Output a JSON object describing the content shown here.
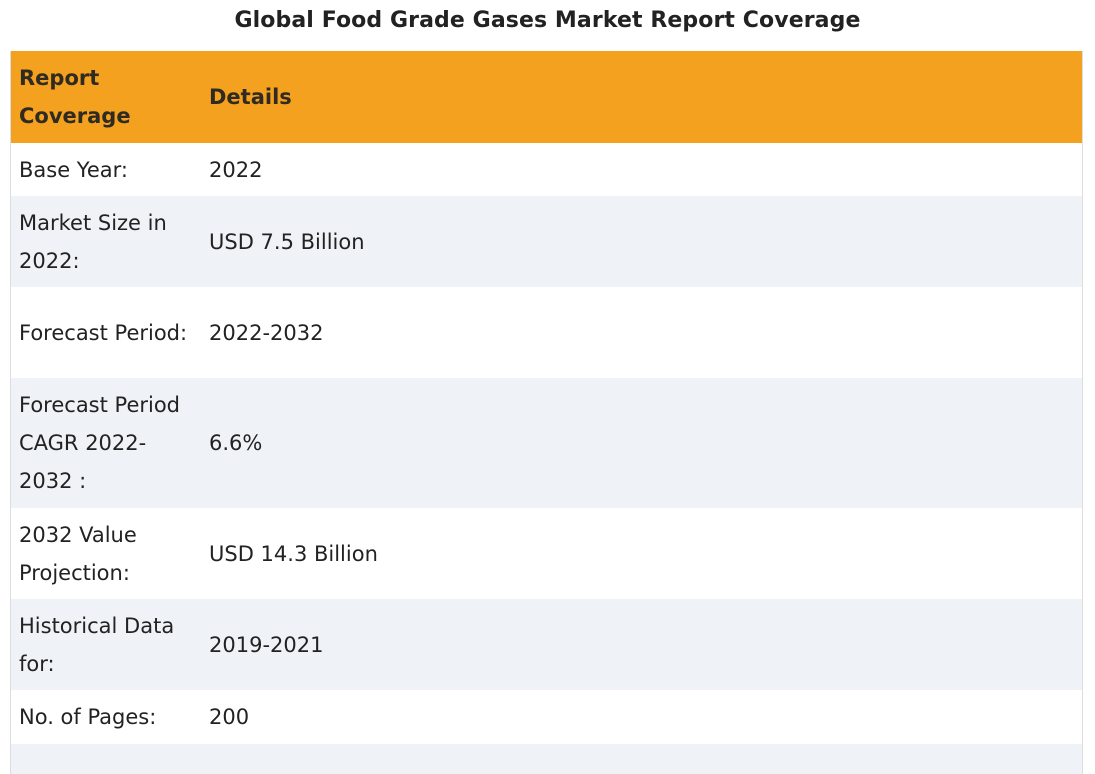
{
  "title": "Global Food Grade Gases Market Report Coverage",
  "table": {
    "headers": [
      "Report Coverage",
      "Details"
    ],
    "rows": [
      [
        "Base Year:",
        "2022"
      ],
      [
        "Market Size in 2022:",
        "USD 7.5 Billion"
      ],
      [
        "Forecast Period:",
        "2022-2032"
      ],
      [
        "Forecast Period CAGR 2022-2032 :",
        "6.6%"
      ],
      [
        "2032 Value Projection:",
        "USD 14.3 Billion"
      ],
      [
        "Historical Data for:",
        "2019-2021"
      ],
      [
        "No. of Pages:",
        "200"
      ],
      [
        "",
        ""
      ]
    ]
  },
  "colors": {
    "header_bg": "#f3a11e",
    "row_alt_bg": "#eff2f6",
    "row_bg": "#ffffff",
    "text": "#222222"
  }
}
